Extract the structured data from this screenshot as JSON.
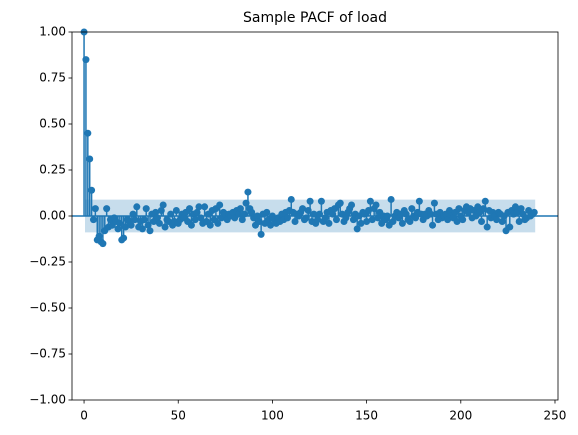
{
  "chart_data": {
    "type": "stem",
    "title": "Sample PACF of load",
    "color": "#1f77b4",
    "confint": 0.089,
    "xlim": [
      -6.4,
      251.6
    ],
    "ylim": [
      -1,
      1
    ],
    "xticks": [
      0,
      50,
      100,
      150,
      200,
      250
    ],
    "yticks": [
      {
        "value": -1,
        "label": "−1.00"
      },
      {
        "value": -0.75,
        "label": "−0.75"
      },
      {
        "value": -0.5,
        "label": "−0.50"
      },
      {
        "value": -0.25,
        "label": "−0.25"
      },
      {
        "value": 0,
        "label": "0.00"
      },
      {
        "value": 0.25,
        "label": "0.25"
      },
      {
        "value": 0.5,
        "label": "0.50"
      },
      {
        "value": 0.75,
        "label": "0.75"
      },
      {
        "value": 1,
        "label": "1.00"
      }
    ],
    "x": [
      0,
      1,
      2,
      3,
      4,
      5,
      6,
      7,
      8,
      9,
      10,
      11,
      12,
      13,
      14,
      15,
      16,
      17,
      18,
      19,
      20,
      21,
      22,
      23,
      24,
      25,
      26,
      27,
      28,
      29,
      30,
      31,
      32,
      33,
      34,
      35,
      36,
      37,
      38,
      39,
      40,
      41,
      42,
      43,
      44,
      45,
      46,
      47,
      48,
      49,
      50,
      51,
      52,
      53,
      54,
      55,
      56,
      57,
      58,
      59,
      60,
      61,
      62,
      63,
      64,
      65,
      66,
      67,
      68,
      69,
      70,
      71,
      72,
      73,
      74,
      75,
      76,
      77,
      78,
      79,
      80,
      81,
      82,
      83,
      84,
      85,
      86,
      87,
      88,
      89,
      90,
      91,
      92,
      93,
      94,
      95,
      96,
      97,
      98,
      99,
      100,
      101,
      102,
      103,
      104,
      105,
      106,
      107,
      108,
      109,
      110,
      111,
      112,
      113,
      114,
      115,
      116,
      117,
      118,
      119,
      120,
      121,
      122,
      123,
      124,
      125,
      126,
      127,
      128,
      129,
      130,
      131,
      132,
      133,
      134,
      135,
      136,
      137,
      138,
      139,
      140,
      141,
      142,
      143,
      144,
      145,
      146,
      147,
      148,
      149,
      150,
      151,
      152,
      153,
      154,
      155,
      156,
      157,
      158,
      159,
      160,
      161,
      162,
      163,
      164,
      165,
      166,
      167,
      168,
      169,
      170,
      171,
      172,
      173,
      174,
      175,
      176,
      177,
      178,
      179,
      180,
      181,
      182,
      183,
      184,
      185,
      186,
      187,
      188,
      189,
      190,
      191,
      192,
      193,
      194,
      195,
      196,
      197,
      198,
      199,
      200,
      201,
      202,
      203,
      204,
      205,
      206,
      207,
      208,
      209,
      210,
      211,
      212,
      213,
      214,
      215,
      216,
      217,
      218,
      219,
      220,
      221,
      222,
      223,
      224,
      225,
      226,
      227,
      228,
      229,
      230,
      231,
      232,
      233,
      234,
      235,
      236,
      237,
      238,
      239
    ],
    "values": [
      1,
      0.85,
      0.45,
      0.31,
      0.14,
      -0.02,
      0.04,
      -0.13,
      -0.11,
      -0.14,
      -0.15,
      -0.08,
      0.04,
      -0.06,
      -0.02,
      -0.05,
      -0.01,
      -0.03,
      -0.07,
      -0.04,
      -0.13,
      -0.12,
      -0.06,
      -0.02,
      -0.03,
      -0.05,
      0.01,
      -0.02,
      0.05,
      -0.06,
      -0.03,
      -0.07,
      -0.02,
      0.04,
      -0.05,
      -0.08,
      0.01,
      -0.03,
      0.02,
      -0.01,
      -0.04,
      0.03,
      0.06,
      -0.06,
      -0.02,
      -0.03,
      0.01,
      -0.05,
      -0.03,
      0.03,
      -0.04,
      -0.02,
      0.01,
      -0.01,
      0.02,
      -0.03,
      0.04,
      -0.05,
      0.01,
      -0.02,
      0.02,
      0.05,
      -0.01,
      -0.04,
      0.05,
      -0.03,
      0.01,
      -0.05,
      0.03,
      -0.02,
      0.04,
      -0.04,
      0.06,
      -0.01,
      0.02,
      0.01,
      -0.02,
      0.01,
      0.0,
      0.02,
      -0.01,
      0.03,
      0.01,
      0.04,
      -0.02,
      0.01,
      0.07,
      0.13,
      0.04,
      0.02,
      -0.01,
      -0.05,
      0.0,
      -0.03,
      -0.1,
      0.01,
      -0.04,
      0.02,
      -0.02,
      -0.05,
      0.0,
      -0.02,
      -0.04,
      -0.01,
      -0.03,
      0.01,
      -0.02,
      0.02,
      -0.01,
      0.03,
      0.09,
      0.02,
      -0.03,
      0.01,
      0.0,
      0.02,
      0.04,
      -0.02,
      -0.01,
      0.03,
      0.08,
      -0.03,
      0.01,
      -0.04,
      -0.02,
      0.01,
      0.08,
      -0.03,
      -0.01,
      0.02,
      -0.04,
      0.03,
      0.01,
      0.04,
      -0.02,
      0.06,
      0.07,
      0.01,
      -0.03,
      -0.01,
      0.02,
      0.04,
      0.06,
      -0.02,
      0.01,
      -0.07,
      0.0,
      -0.04,
      0.02,
      0.01,
      -0.03,
      0.03,
      0.08,
      -0.02,
      0.04,
      0.06,
      -0.01,
      0.02,
      -0.04,
      0.0,
      -0.02,
      0.0,
      -0.05,
      0.09,
      -0.03,
      0.0,
      0.02,
      -0.01,
      0.01,
      -0.04,
      0.03,
      0.01,
      -0.02,
      -0.03,
      0.04,
      0.0,
      -0.01,
      0.02,
      0.08,
      0.01,
      -0.02,
      0.01,
      0.0,
      0.03,
      0.01,
      -0.05,
      0.07,
      0.01,
      -0.02,
      0.02,
      -0.01,
      0.0,
      0.01,
      -0.02,
      0.03,
      0.0,
      -0.01,
      0.02,
      -0.03,
      0.04,
      0.0,
      -0.02,
      0.03,
      0.05,
      0.02,
      0.04,
      -0.01,
      0.03,
      0.0,
      0.05,
      0.02,
      -0.03,
      0.04,
      0.08,
      -0.06,
      0.03,
      -0.01,
      0.02,
      0.0,
      -0.02,
      0.02,
      0.01,
      -0.03,
      0.0,
      -0.08,
      0.02,
      -0.06,
      0.03,
      0.01,
      0.05,
      0.02,
      -0.03,
      0.04,
      0.01,
      -0.02,
      -0.01,
      0.03,
      0.0,
      0.01,
      0.02
    ]
  }
}
